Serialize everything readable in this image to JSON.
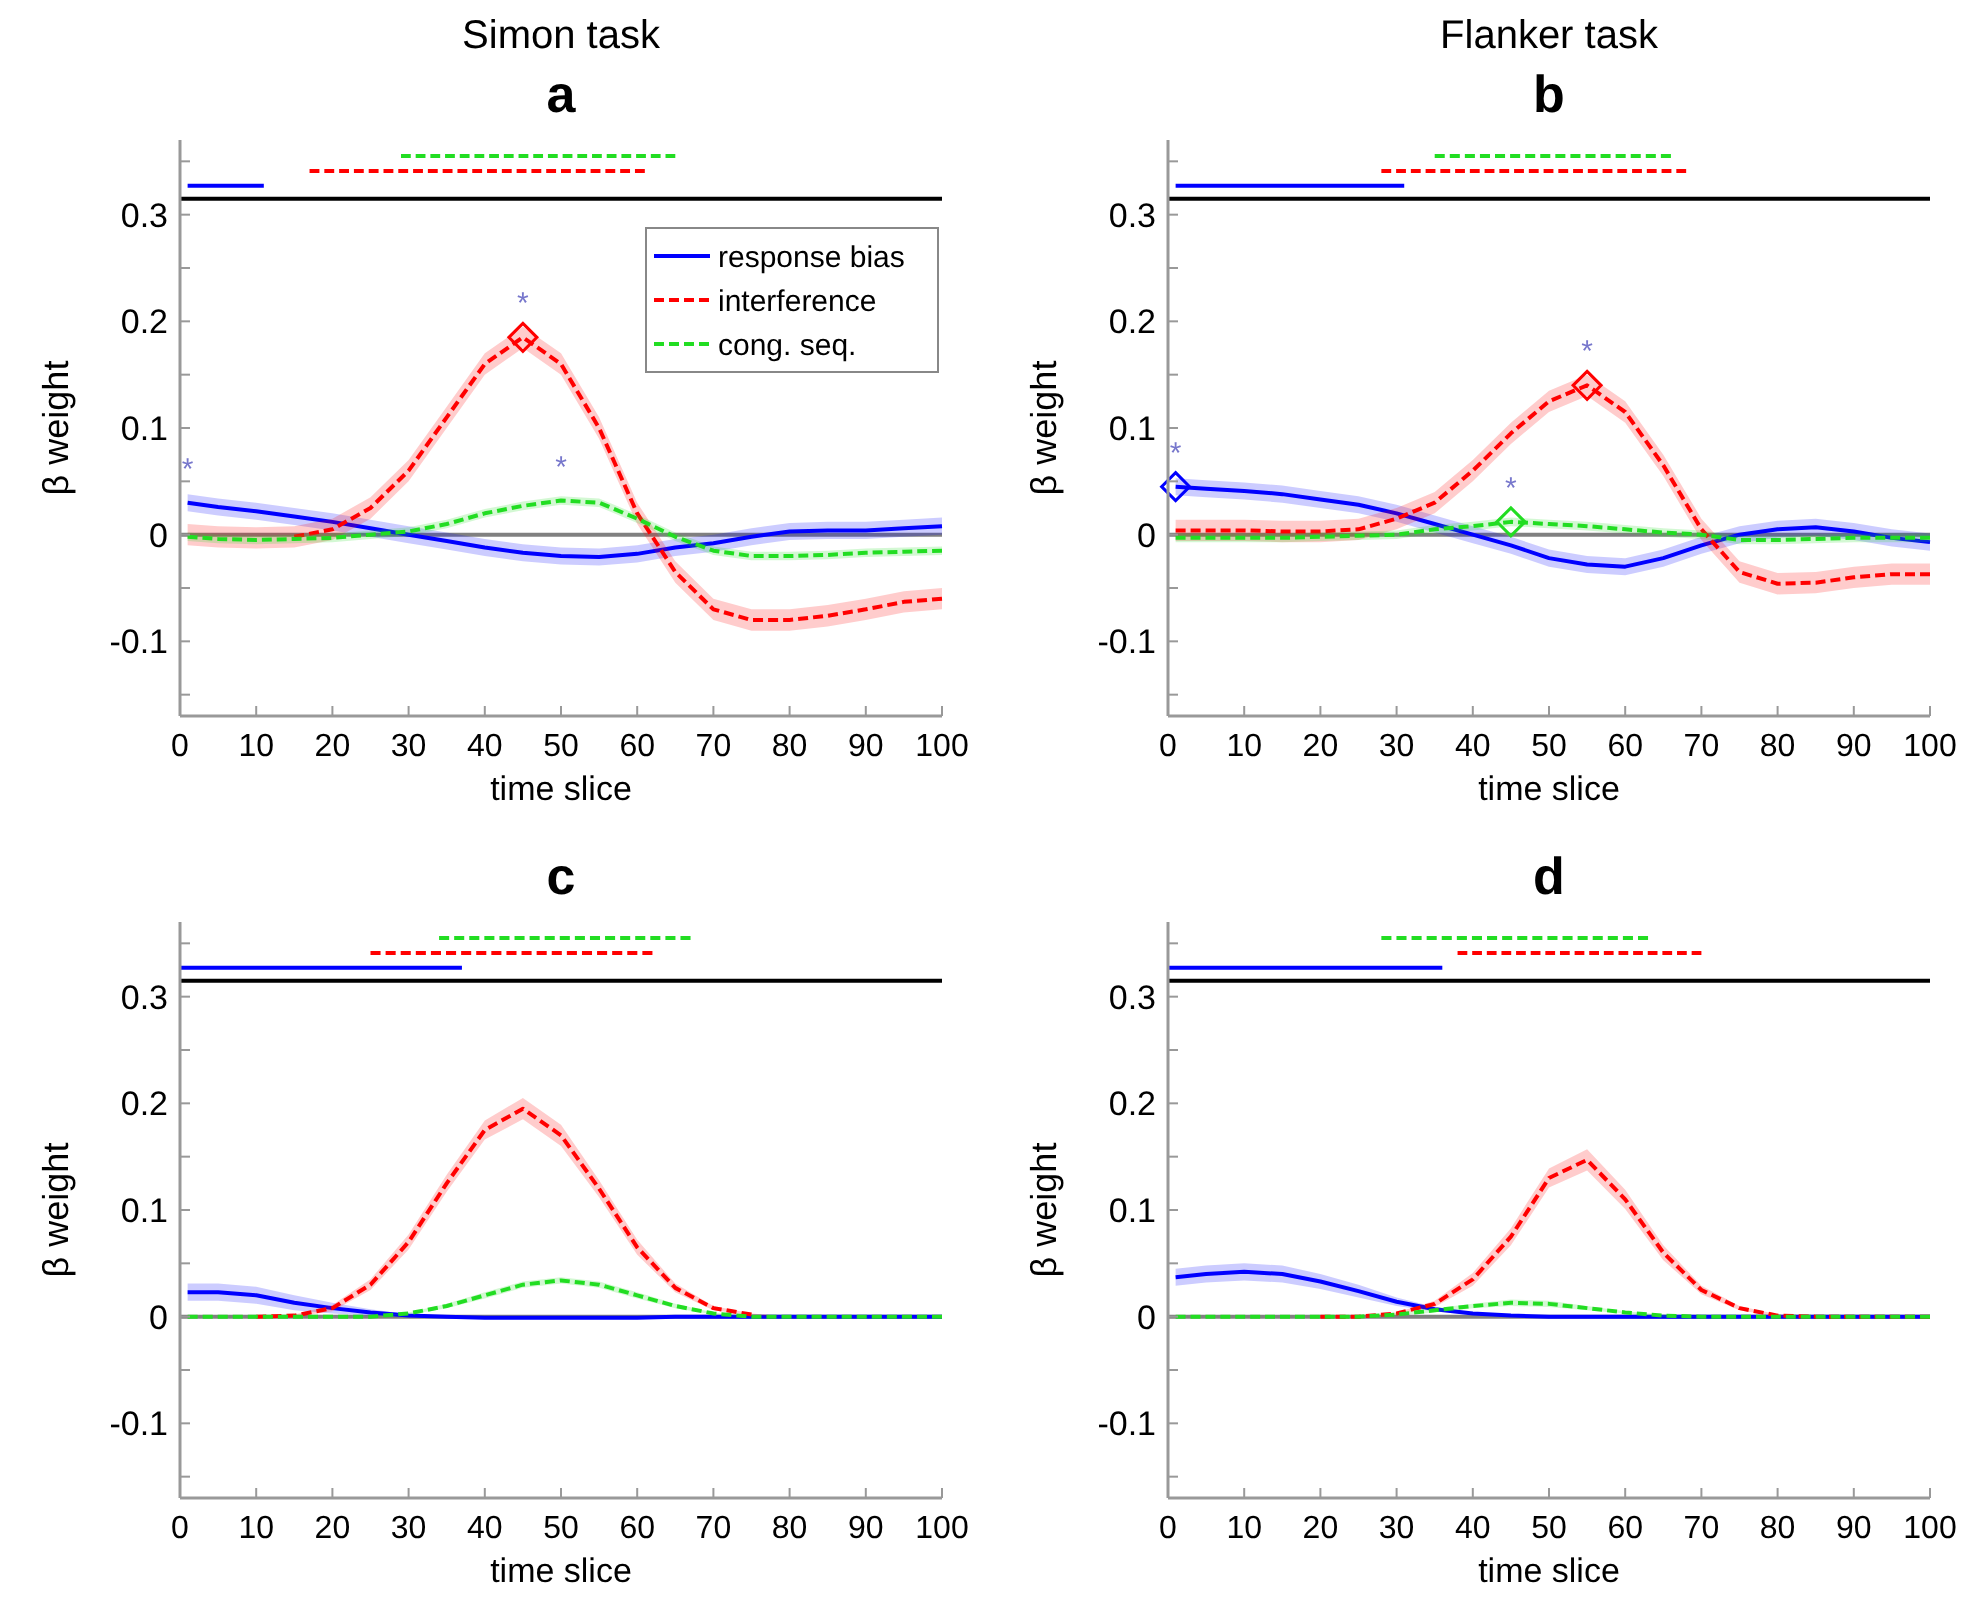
{
  "chart_data": [
    {
      "type": "line",
      "subtitle": "Simon task",
      "title": "a",
      "xlabel": "time slice",
      "ylabel": "β weight",
      "xlim": [
        0,
        100
      ],
      "xticks": [
        0,
        10,
        20,
        30,
        40,
        50,
        60,
        70,
        80,
        90,
        100
      ],
      "ylim": [
        -0.17,
        0.37
      ],
      "yticks": [
        {
          "value": -0.15,
          "label": null
        },
        -0.1,
        {
          "value": -0.05,
          "label": null
        },
        0,
        {
          "value": 0.05,
          "label": null
        },
        0.1,
        {
          "value": 0.15,
          "label": null
        },
        0.2,
        {
          "value": 0.25,
          "label": null
        },
        0.3,
        {
          "value": 0.35,
          "label": null
        }
      ],
      "legend": "top right",
      "x": [
        1,
        5,
        10,
        15,
        20,
        25,
        30,
        35,
        40,
        45,
        50,
        55,
        60,
        65,
        70,
        75,
        80,
        85,
        90,
        95,
        100
      ],
      "series": [
        {
          "name": "response bias",
          "color": "#0000ff",
          "line_style": "solid",
          "values": [
            0.03,
            0.026,
            0.022,
            0.017,
            0.012,
            0.006,
            0,
            -0.006,
            -0.012,
            -0.017,
            -0.02,
            -0.021,
            -0.018,
            -0.012,
            -0.008,
            -0.002,
            0.003,
            0.004,
            0.004,
            0.006,
            0.008
          ],
          "lower": [
            0.022,
            0.018,
            0.014,
            0.009,
            0.004,
            -0.002,
            -0.008,
            -0.014,
            -0.02,
            -0.025,
            -0.028,
            -0.029,
            -0.026,
            -0.02,
            -0.016,
            -0.01,
            -0.005,
            -0.004,
            -0.004,
            -0.002,
            0
          ],
          "upper": [
            0.038,
            0.034,
            0.03,
            0.025,
            0.02,
            0.014,
            0.008,
            0.002,
            -0.004,
            -0.009,
            -0.012,
            -0.013,
            -0.01,
            -0.004,
            0,
            0.006,
            0.011,
            0.012,
            0.012,
            0.014,
            0.016
          ]
        },
        {
          "name": "interference",
          "color": "#ff0000",
          "line_style": "dashed",
          "values": [
            null,
            null,
            null,
            -0.002,
            0.005,
            0.025,
            0.06,
            0.11,
            0.16,
            0.185,
            0.16,
            0.1,
            0.02,
            -0.035,
            -0.07,
            -0.08,
            -0.08,
            -0.076,
            -0.07,
            -0.063,
            -0.06
          ],
          "lower": [
            -0.01,
            -0.012,
            -0.013,
            -0.012,
            -0.005,
            0.015,
            0.05,
            0.1,
            0.15,
            0.175,
            0.15,
            0.09,
            0.01,
            -0.045,
            -0.08,
            -0.09,
            -0.09,
            -0.086,
            -0.08,
            -0.073,
            -0.07
          ],
          "upper": [
            0.01,
            0.008,
            0.007,
            0.008,
            0.015,
            0.035,
            0.07,
            0.12,
            0.17,
            0.195,
            0.17,
            0.11,
            0.03,
            -0.025,
            -0.06,
            -0.07,
            -0.07,
            -0.066,
            -0.06,
            -0.053,
            -0.05
          ]
        },
        {
          "name": "cong. seq.",
          "color": "#22dd22",
          "line_style": "dashed",
          "values": [
            -0.002,
            -0.004,
            -0.005,
            -0.004,
            -0.003,
            0,
            0.003,
            0.01,
            0.02,
            0.027,
            0.032,
            0.03,
            0.015,
            -0.002,
            -0.015,
            -0.02,
            -0.02,
            -0.019,
            -0.017,
            -0.016,
            -0.015
          ],
          "lower": [
            -0.006,
            -0.008,
            -0.009,
            -0.008,
            -0.007,
            -0.004,
            -0.001,
            0.006,
            0.016,
            0.023,
            0.028,
            0.026,
            0.011,
            -0.006,
            -0.019,
            -0.024,
            -0.024,
            -0.023,
            -0.021,
            -0.02,
            -0.019
          ],
          "upper": [
            0.002,
            0,
            -0.001,
            0,
            0.001,
            0.004,
            0.007,
            0.014,
            0.024,
            0.031,
            0.036,
            0.034,
            0.019,
            0.002,
            -0.011,
            -0.016,
            -0.016,
            -0.015,
            -0.013,
            -0.012,
            -0.011
          ]
        },
        {
          "type": "scatter",
          "marker": "diamond",
          "color": "#ff0000",
          "x": [
            45
          ],
          "values": [
            0.185
          ]
        },
        {
          "type": "line",
          "color": "#0000ff",
          "line_style": "solid",
          "x": [
            1,
            11
          ],
          "values": [
            0.327,
            0.327
          ]
        },
        {
          "type": "line",
          "color": "#ff0000",
          "line_style": "dashed",
          "x": [
            17,
            61
          ],
          "values": [
            0.341,
            0.341
          ]
        },
        {
          "type": "line",
          "color": "#22dd22",
          "line_style": "dashed",
          "x": [
            29,
            65
          ],
          "values": [
            0.355,
            0.355
          ]
        }
      ],
      "ref_lines": [
        {
          "axis": "y",
          "value": 0.315,
          "color": "#000000"
        },
        {
          "axis": "y",
          "value": 0,
          "color": "#808080"
        }
      ],
      "annotations": [
        {
          "text": "*",
          "x": 1,
          "y": 0.03
        },
        {
          "text": "*",
          "x": 45,
          "y": 0.185
        },
        {
          "text": "*",
          "x": 50,
          "y": 0.032
        }
      ]
    },
    {
      "type": "line",
      "subtitle": "Flanker task",
      "title": "b",
      "xlabel": "time slice",
      "ylabel": "β weight",
      "xlim": [
        0,
        100
      ],
      "xticks": [
        0,
        10,
        20,
        30,
        40,
        50,
        60,
        70,
        80,
        90,
        100
      ],
      "ylim": [
        -0.17,
        0.37
      ],
      "yticks": [
        {
          "value": -0.15,
          "label": null
        },
        -0.1,
        {
          "value": -0.05,
          "label": null
        },
        0,
        {
          "value": 0.05,
          "label": null
        },
        0.1,
        {
          "value": 0.15,
          "label": null
        },
        0.2,
        {
          "value": 0.25,
          "label": null
        },
        0.3,
        {
          "value": 0.35,
          "label": null
        }
      ],
      "x": [
        1,
        5,
        10,
        15,
        20,
        25,
        30,
        35,
        40,
        45,
        50,
        55,
        60,
        65,
        70,
        75,
        80,
        85,
        90,
        95,
        100
      ],
      "series": [
        {
          "color": "#0000ff",
          "line_style": "solid",
          "values": [
            0.045,
            0.043,
            0.041,
            0.038,
            0.033,
            0.028,
            0.02,
            0.01,
            0,
            -0.01,
            -0.022,
            -0.028,
            -0.03,
            -0.022,
            -0.01,
            0,
            0.005,
            0.007,
            0.003,
            -0.003,
            -0.007
          ],
          "lower": [
            0.037,
            0.035,
            0.033,
            0.03,
            0.025,
            0.02,
            0.012,
            0.002,
            -0.008,
            -0.018,
            -0.03,
            -0.036,
            -0.038,
            -0.03,
            -0.018,
            -0.008,
            -0.003,
            -0.001,
            -0.005,
            -0.011,
            -0.015
          ],
          "upper": [
            0.053,
            0.051,
            0.049,
            0.046,
            0.041,
            0.036,
            0.028,
            0.018,
            0.008,
            -0.002,
            -0.014,
            -0.02,
            -0.022,
            -0.014,
            -0.002,
            0.008,
            0.013,
            0.015,
            0.011,
            0.005,
            0.001
          ]
        },
        {
          "color": "#ff0000",
          "line_style": "dashed",
          "values": [
            0.004,
            0.004,
            0.004,
            0.003,
            0.003,
            0.005,
            0.015,
            0.03,
            0.06,
            0.095,
            0.125,
            0.14,
            0.115,
            0.065,
            0.005,
            -0.035,
            -0.046,
            -0.045,
            -0.04,
            -0.037,
            -0.037
          ],
          "lower": [
            -0.006,
            -0.006,
            -0.006,
            -0.007,
            -0.007,
            -0.005,
            0.005,
            0.02,
            0.05,
            0.085,
            0.115,
            0.13,
            0.105,
            0.055,
            -0.005,
            -0.045,
            -0.056,
            -0.055,
            -0.05,
            -0.047,
            -0.047
          ],
          "upper": [
            0.014,
            0.014,
            0.014,
            0.013,
            0.013,
            0.015,
            0.025,
            0.04,
            0.07,
            0.105,
            0.135,
            0.15,
            0.125,
            0.075,
            0.015,
            -0.025,
            -0.036,
            -0.035,
            -0.03,
            -0.027,
            -0.027
          ]
        },
        {
          "color": "#22dd22",
          "line_style": "dashed",
          "values": [
            -0.003,
            -0.003,
            -0.003,
            -0.003,
            -0.002,
            -0.001,
            0,
            0.005,
            0.008,
            0.012,
            0.01,
            0.008,
            0.005,
            0.002,
            0,
            -0.005,
            -0.005,
            -0.004,
            -0.003,
            -0.003,
            -0.003
          ],
          "lower": [
            -0.007,
            -0.007,
            -0.007,
            -0.007,
            -0.006,
            -0.005,
            -0.004,
            0.001,
            0.004,
            0.008,
            0.006,
            0.004,
            0.001,
            -0.002,
            -0.004,
            -0.009,
            -0.009,
            -0.008,
            -0.007,
            -0.007,
            -0.007
          ],
          "upper": [
            0.001,
            0.001,
            0.001,
            0.001,
            0.002,
            0.003,
            0.004,
            0.009,
            0.012,
            0.016,
            0.014,
            0.012,
            0.009,
            0.006,
            0.004,
            -0.001,
            -0.001,
            0,
            0.001,
            0.001,
            0.001
          ]
        },
        {
          "type": "scatter",
          "marker": "diamond",
          "color": "#0000ff",
          "x": [
            1
          ],
          "values": [
            0.045
          ]
        },
        {
          "type": "scatter",
          "marker": "diamond",
          "color": "#ff0000",
          "x": [
            55
          ],
          "values": [
            0.14
          ]
        },
        {
          "type": "scatter",
          "marker": "diamond",
          "color": "#22dd22",
          "x": [
            45
          ],
          "values": [
            0.012
          ]
        },
        {
          "type": "line",
          "color": "#0000ff",
          "line_style": "solid",
          "x": [
            1,
            31
          ],
          "values": [
            0.327,
            0.327
          ]
        },
        {
          "type": "line",
          "color": "#ff0000",
          "line_style": "dashed",
          "x": [
            28,
            68
          ],
          "values": [
            0.341,
            0.341
          ]
        },
        {
          "type": "line",
          "color": "#22dd22",
          "line_style": "dashed",
          "x": [
            35,
            66
          ],
          "values": [
            0.355,
            0.355
          ]
        }
      ],
      "ref_lines": [
        {
          "axis": "y",
          "value": 0.315,
          "color": "#000000"
        },
        {
          "axis": "y",
          "value": 0,
          "color": "#808080"
        }
      ],
      "annotations": [
        {
          "text": "*",
          "x": 1,
          "y": 0.045
        },
        {
          "text": "*",
          "x": 55,
          "y": 0.14
        },
        {
          "text": "*",
          "x": 45,
          "y": 0.012
        }
      ]
    },
    {
      "type": "line",
      "title": "c",
      "xlabel": "time slice",
      "ylabel": "β weight",
      "xlim": [
        0,
        100
      ],
      "xticks": [
        0,
        10,
        20,
        30,
        40,
        50,
        60,
        70,
        80,
        90,
        100
      ],
      "ylim": [
        -0.17,
        0.37
      ],
      "yticks": [
        {
          "value": -0.15,
          "label": null
        },
        -0.1,
        {
          "value": -0.05,
          "label": null
        },
        0,
        {
          "value": 0.05,
          "label": null
        },
        0.1,
        {
          "value": 0.15,
          "label": null
        },
        0.2,
        {
          "value": 0.25,
          "label": null
        },
        0.3,
        {
          "value": 0.35,
          "label": null
        }
      ],
      "x": [
        1,
        5,
        10,
        15,
        20,
        25,
        30,
        35,
        40,
        45,
        50,
        55,
        60,
        65,
        70,
        75,
        80,
        85,
        90,
        95,
        100
      ],
      "series": [
        {
          "color": "#0000ff",
          "line_style": "solid",
          "values": [
            0.023,
            0.023,
            0.02,
            0.013,
            0.008,
            0.004,
            0.001,
            0,
            -0.001,
            -0.001,
            -0.001,
            -0.001,
            -0.001,
            0,
            0,
            0,
            0,
            0,
            0,
            0,
            0
          ],
          "lower": [
            0.015,
            0.015,
            0.012,
            0.006,
            0.003,
            0.001,
            0,
            0,
            -0.001,
            -0.001,
            -0.001,
            -0.001,
            -0.001,
            0,
            0,
            0,
            0,
            0,
            0,
            0,
            0
          ],
          "upper": [
            0.031,
            0.031,
            0.028,
            0.02,
            0.013,
            0.007,
            0.002,
            0.001,
            0,
            0,
            0,
            0,
            0,
            0,
            0,
            0,
            0,
            0,
            0,
            0,
            0
          ]
        },
        {
          "color": "#ff0000",
          "line_style": "dashed",
          "values": [
            null,
            null,
            0,
            0.001,
            0.008,
            0.03,
            0.07,
            0.125,
            0.175,
            0.195,
            0.17,
            0.12,
            0.065,
            0.027,
            0.008,
            0.002,
            null,
            null,
            null,
            null,
            null
          ],
          "lower": [
            0,
            0,
            0,
            0,
            0.005,
            0.025,
            0.063,
            0.117,
            0.166,
            0.185,
            0.16,
            0.112,
            0.058,
            0.023,
            0.006,
            0.001,
            0,
            0,
            0,
            0,
            0
          ],
          "upper": [
            0,
            0,
            0,
            0.002,
            0.011,
            0.035,
            0.077,
            0.133,
            0.184,
            0.205,
            0.18,
            0.128,
            0.072,
            0.031,
            0.01,
            0.003,
            0,
            0,
            0,
            0,
            0
          ]
        },
        {
          "color": "#22dd22",
          "line_style": "dashed",
          "values": [
            0,
            0,
            0,
            0,
            0,
            0,
            0.003,
            0.01,
            0.02,
            0.03,
            0.034,
            0.03,
            0.02,
            0.01,
            0.003,
            0,
            0,
            0,
            0,
            0,
            0
          ],
          "lower": [
            0,
            0,
            0,
            0,
            0,
            0,
            0.002,
            0.008,
            0.017,
            0.027,
            0.031,
            0.027,
            0.017,
            0.008,
            0.002,
            0,
            0,
            0,
            0,
            0,
            0
          ],
          "upper": [
            0,
            0,
            0,
            0,
            0,
            0,
            0.004,
            0.012,
            0.023,
            0.033,
            0.037,
            0.033,
            0.023,
            0.012,
            0.004,
            0,
            0,
            0,
            0,
            0,
            0
          ]
        },
        {
          "type": "line",
          "color": "#0000ff",
          "line_style": "solid",
          "x": [
            0,
            37
          ],
          "values": [
            0.327,
            0.327
          ]
        },
        {
          "type": "line",
          "color": "#ff0000",
          "line_style": "dashed",
          "x": [
            25,
            62
          ],
          "values": [
            0.341,
            0.341
          ]
        },
        {
          "type": "line",
          "color": "#22dd22",
          "line_style": "dashed",
          "x": [
            34,
            67
          ],
          "values": [
            0.355,
            0.355
          ]
        }
      ],
      "ref_lines": [
        {
          "axis": "y",
          "value": 0.315,
          "color": "#000000"
        },
        {
          "axis": "y",
          "value": 0,
          "color": "#808080"
        }
      ]
    },
    {
      "type": "line",
      "title": "d",
      "xlabel": "time slice",
      "ylabel": "β weight",
      "xlim": [
        0,
        100
      ],
      "xticks": [
        0,
        10,
        20,
        30,
        40,
        50,
        60,
        70,
        80,
        90,
        100
      ],
      "ylim": [
        -0.17,
        0.37
      ],
      "yticks": [
        {
          "value": -0.15,
          "label": null
        },
        -0.1,
        {
          "value": -0.05,
          "label": null
        },
        0,
        {
          "value": 0.05,
          "label": null
        },
        0.1,
        {
          "value": 0.15,
          "label": null
        },
        0.2,
        {
          "value": 0.25,
          "label": null
        },
        0.3,
        {
          "value": 0.35,
          "label": null
        }
      ],
      "x": [
        1,
        5,
        10,
        15,
        20,
        25,
        30,
        35,
        40,
        45,
        50,
        55,
        60,
        65,
        70,
        75,
        80,
        85,
        90,
        95,
        100
      ],
      "series": [
        {
          "color": "#0000ff",
          "line_style": "solid",
          "values": [
            0.037,
            0.04,
            0.042,
            0.04,
            0.033,
            0.024,
            0.014,
            0.007,
            0.003,
            0.001,
            0,
            0,
            0,
            0,
            0,
            0,
            0,
            0,
            0,
            0,
            0
          ],
          "lower": [
            0.029,
            0.032,
            0.034,
            0.032,
            0.026,
            0.018,
            0.01,
            0.005,
            0.002,
            0,
            0,
            0,
            0,
            0,
            0,
            0,
            0,
            0,
            0,
            0,
            0
          ],
          "upper": [
            0.045,
            0.048,
            0.05,
            0.048,
            0.04,
            0.03,
            0.018,
            0.009,
            0.004,
            0.002,
            0,
            0,
            0,
            0,
            0,
            0,
            0,
            0,
            0,
            0,
            0
          ]
        },
        {
          "color": "#ff0000",
          "line_style": "dashed",
          "values": [
            null,
            null,
            null,
            null,
            0,
            0,
            0.003,
            0.012,
            0.035,
            0.075,
            0.13,
            0.147,
            0.11,
            0.06,
            0.025,
            0.008,
            0.001,
            0,
            0,
            0,
            0
          ],
          "lower": [
            0,
            0,
            0,
            0,
            0,
            0,
            0.002,
            0.009,
            0.029,
            0.067,
            0.121,
            0.137,
            0.101,
            0.053,
            0.021,
            0.006,
            0,
            0,
            0,
            0,
            0
          ],
          "upper": [
            0,
            0,
            0,
            0,
            0,
            0,
            0.004,
            0.015,
            0.041,
            0.083,
            0.139,
            0.157,
            0.119,
            0.067,
            0.029,
            0.01,
            0.002,
            0,
            0,
            0,
            0
          ]
        },
        {
          "color": "#22dd22",
          "line_style": "dashed",
          "values": [
            0,
            0,
            0,
            0,
            0,
            0,
            0.002,
            0.006,
            0.01,
            0.013,
            0.012,
            0.008,
            0.004,
            0.001,
            0,
            0,
            0,
            0,
            0,
            0,
            0
          ],
          "lower": [
            0,
            0,
            0,
            0,
            0,
            0,
            0.001,
            0.004,
            0.008,
            0.01,
            0.009,
            0.006,
            0.003,
            0,
            0,
            0,
            0,
            0,
            0,
            0,
            0
          ],
          "upper": [
            0,
            0,
            0,
            0,
            0,
            0,
            0.003,
            0.008,
            0.012,
            0.016,
            0.015,
            0.01,
            0.005,
            0.002,
            0,
            0,
            0,
            0,
            0,
            0,
            0
          ]
        },
        {
          "type": "line",
          "color": "#0000ff",
          "line_style": "solid",
          "x": [
            0,
            36
          ],
          "values": [
            0.327,
            0.327
          ]
        },
        {
          "type": "line",
          "color": "#ff0000",
          "line_style": "dashed",
          "x": [
            38,
            70
          ],
          "values": [
            0.341,
            0.341
          ]
        },
        {
          "type": "line",
          "color": "#22dd22",
          "line_style": "dashed",
          "x": [
            28,
            63
          ],
          "values": [
            0.355,
            0.355
          ]
        }
      ],
      "ref_lines": [
        {
          "axis": "y",
          "value": 0.315,
          "color": "#000000"
        },
        {
          "axis": "y",
          "value": 0,
          "color": "#808080"
        }
      ]
    }
  ]
}
